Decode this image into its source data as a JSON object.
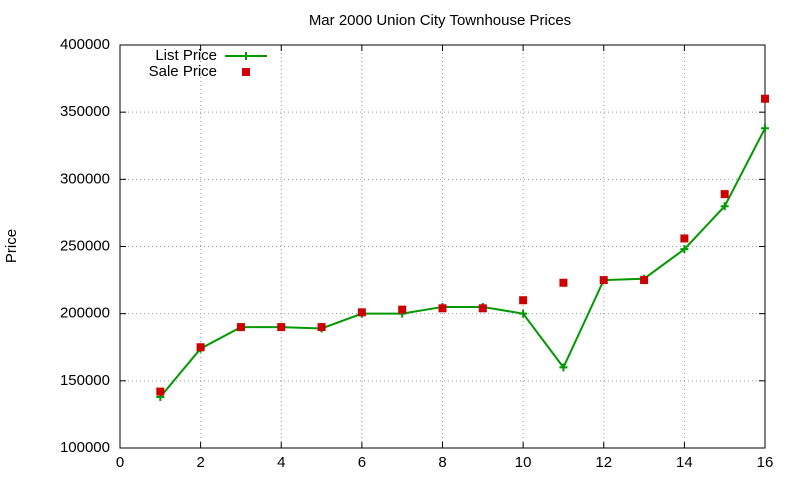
{
  "chart_data": {
    "type": "line",
    "title": "Mar 2000 Union City Townhouse Prices",
    "y_label": "Price",
    "x": [
      1,
      2,
      3,
      4,
      5,
      6,
      7,
      8,
      9,
      10,
      11,
      12,
      13,
      14,
      15,
      16
    ],
    "series": [
      {
        "name": "List Price",
        "color": "#009900",
        "mode": "linespoints",
        "values": [
          138000,
          174000,
          190000,
          190000,
          189000,
          200000,
          200000,
          205000,
          205000,
          200000,
          160000,
          225000,
          226000,
          248000,
          280000,
          338000
        ]
      },
      {
        "name": "Sale Price",
        "color": "#cc0000",
        "mode": "points",
        "values": [
          142000,
          175000,
          190000,
          190000,
          190000,
          201000,
          203000,
          204000,
          204000,
          210000,
          223000,
          225000,
          225000,
          256000,
          289000,
          360000
        ]
      }
    ],
    "xlim": [
      0,
      16
    ],
    "xticks": [
      0,
      2,
      4,
      6,
      8,
      10,
      12,
      14,
      16
    ],
    "ylim": [
      100000,
      400000
    ],
    "yticks": [
      100000,
      150000,
      200000,
      250000,
      300000,
      350000,
      400000
    ],
    "grid": true,
    "legend": "top-left"
  }
}
